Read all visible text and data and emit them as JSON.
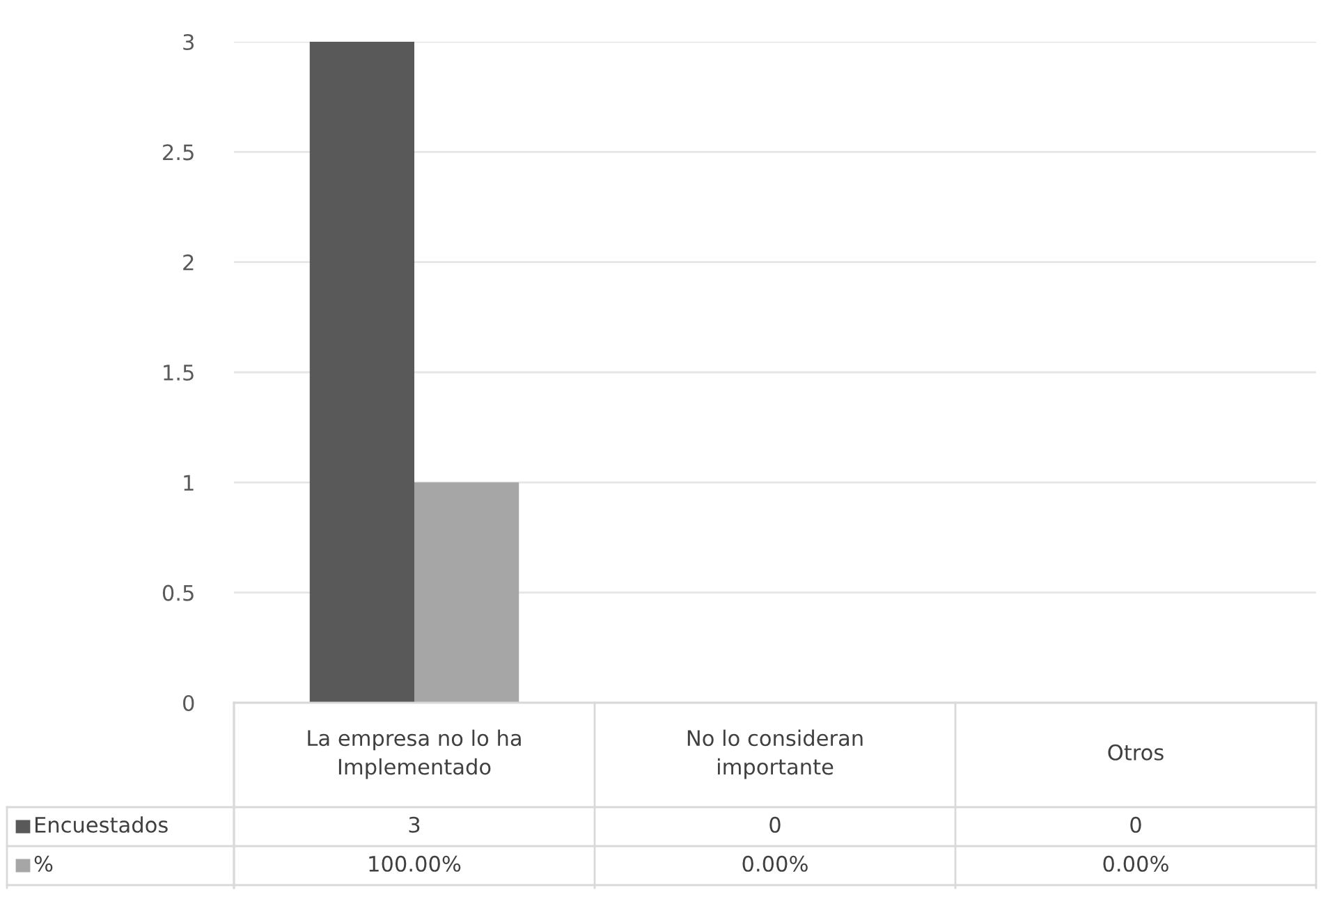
{
  "chart_data": {
    "type": "bar",
    "categories": [
      "La empresa no lo ha Implementado",
      "No lo consideran importante",
      "Otros"
    ],
    "series": [
      {
        "name": "Encuestados",
        "color": "#595959",
        "values": [
          3,
          0,
          0
        ],
        "value_labels": [
          "3",
          "0",
          "0"
        ]
      },
      {
        "name": "%",
        "color": "#a6a6a6",
        "values": [
          1,
          0,
          0
        ],
        "value_labels": [
          "100.00%",
          "0.00%",
          "0.00%"
        ]
      }
    ],
    "ylim": [
      0,
      3
    ],
    "yticks": [
      0,
      0.5,
      1,
      1.5,
      2,
      2.5,
      3
    ],
    "grid": "y",
    "legend": "bottom"
  }
}
